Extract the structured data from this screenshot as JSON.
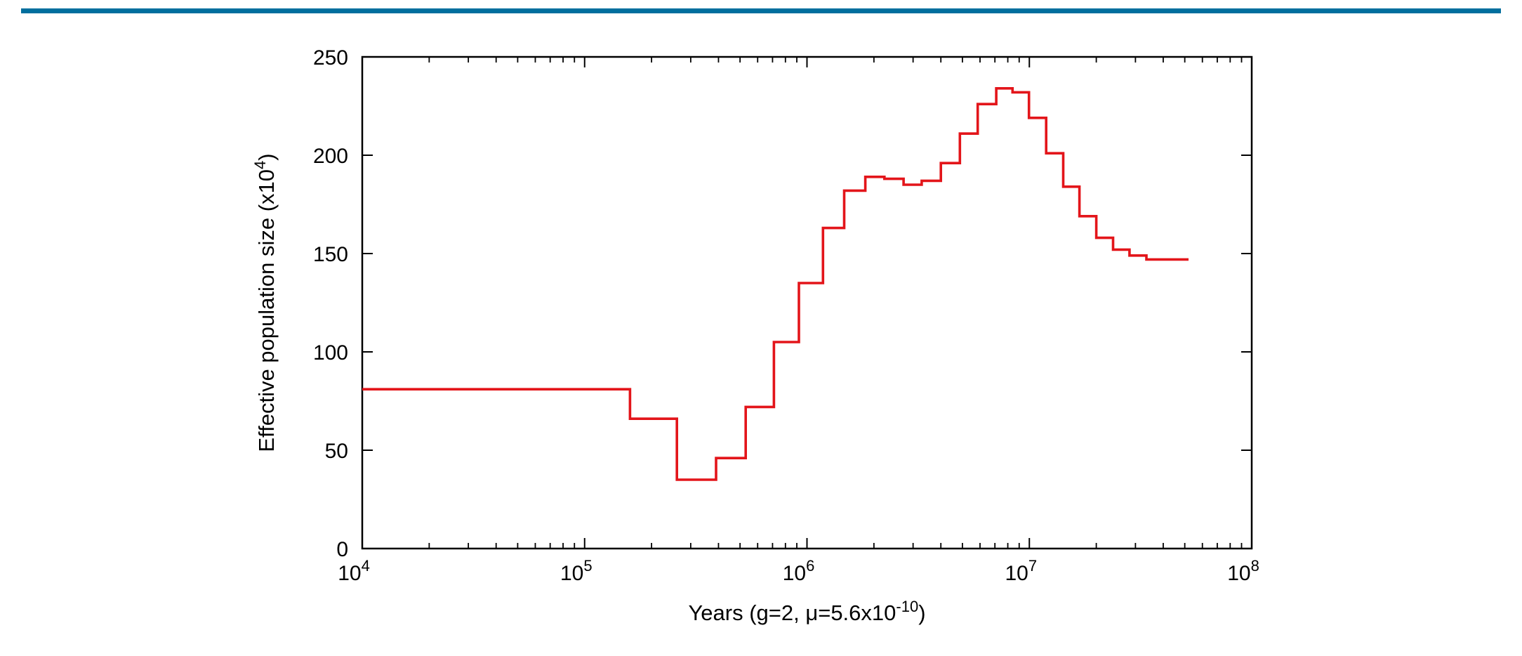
{
  "colors": {
    "header_rule": "#006f9e",
    "series_line": "#e3151a",
    "axis": "#000000"
  },
  "chart_data": {
    "type": "line",
    "subtype": "step",
    "title": "",
    "xlabel": {
      "prefix": "Years (g=2, μ=5.6x10",
      "exponent": "-10",
      "suffix": ")"
    },
    "ylabel": {
      "prefix": "Effective population size (x10",
      "exponent": "4",
      "suffix": ")"
    },
    "xscale": "log",
    "xlim": [
      10000,
      100000000
    ],
    "ylim": [
      0,
      250
    ],
    "grid": false,
    "legend": "none",
    "x_ticks": [
      {
        "value": 10000,
        "base": "10",
        "exp": "4"
      },
      {
        "value": 100000,
        "base": "10",
        "exp": "5"
      },
      {
        "value": 1000000,
        "base": "10",
        "exp": "6"
      },
      {
        "value": 10000000,
        "base": "10",
        "exp": "7"
      },
      {
        "value": 100000000,
        "base": "10",
        "exp": "8"
      }
    ],
    "y_ticks": [
      0,
      50,
      100,
      150,
      200,
      250
    ],
    "series": [
      {
        "color": "#e3151a",
        "steps": [
          {
            "x": 10000,
            "y": 81
          },
          {
            "x": 160000,
            "y": 66
          },
          {
            "x": 260000,
            "y": 35
          },
          {
            "x": 390000,
            "y": 46
          },
          {
            "x": 530000,
            "y": 72
          },
          {
            "x": 710000,
            "y": 105
          },
          {
            "x": 920000,
            "y": 135
          },
          {
            "x": 1180000,
            "y": 163
          },
          {
            "x": 1470000,
            "y": 182
          },
          {
            "x": 1830000,
            "y": 189
          },
          {
            "x": 2230000,
            "y": 188
          },
          {
            "x": 2720000,
            "y": 185
          },
          {
            "x": 3280000,
            "y": 187
          },
          {
            "x": 4000000,
            "y": 196
          },
          {
            "x": 4870000,
            "y": 211
          },
          {
            "x": 5860000,
            "y": 226
          },
          {
            "x": 7100000,
            "y": 234
          },
          {
            "x": 8400000,
            "y": 232
          },
          {
            "x": 9960000,
            "y": 219
          },
          {
            "x": 11900000,
            "y": 201
          },
          {
            "x": 14200000,
            "y": 184
          },
          {
            "x": 16800000,
            "y": 169
          },
          {
            "x": 20000000,
            "y": 158
          },
          {
            "x": 23800000,
            "y": 152
          },
          {
            "x": 28200000,
            "y": 149
          },
          {
            "x": 33600000,
            "y": 147
          }
        ],
        "x_end": 52000000
      }
    ]
  }
}
